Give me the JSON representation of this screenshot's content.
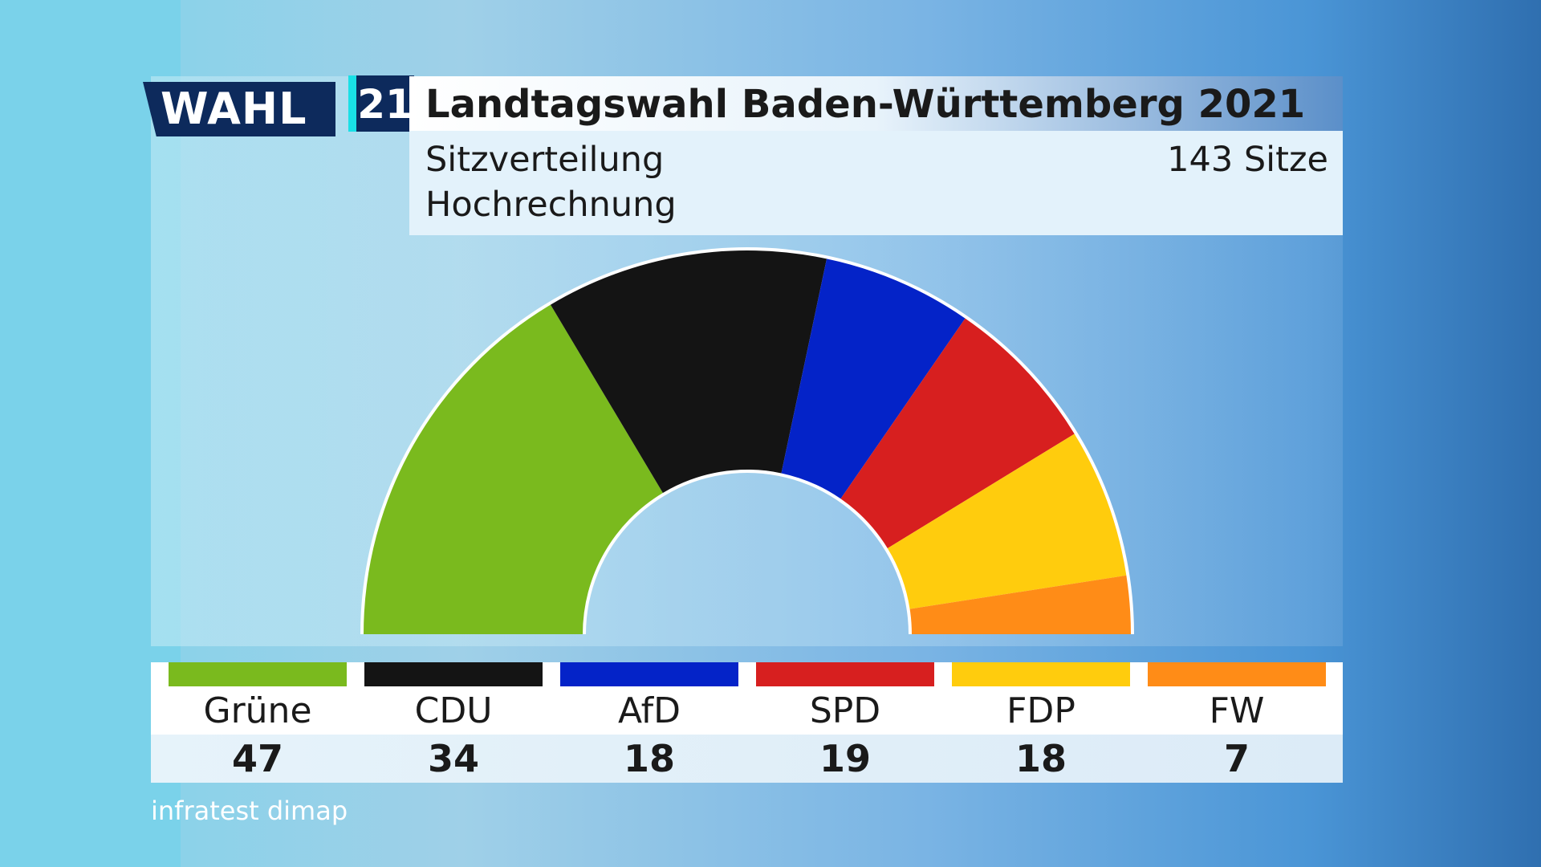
{
  "header": {
    "logo_wahl": "WAHL",
    "logo_year": "21",
    "title": "Landtagswahl Baden-Württemberg 2021",
    "subtitle_1": "Sitzverteilung",
    "subtitle_2": "Hochrechnung",
    "total_seats_label": "143 Sitze"
  },
  "chart_data": {
    "type": "parliament-semicircle",
    "total_seats": 143,
    "parties": [
      {
        "name": "Grüne",
        "seats": 47,
        "color": "#7aba1e"
      },
      {
        "name": "CDU",
        "seats": 34,
        "color": "#141414"
      },
      {
        "name": "AfD",
        "seats": 18,
        "color": "#0423c8"
      },
      {
        "name": "SPD",
        "seats": 19,
        "color": "#d71f1f"
      },
      {
        "name": "FDP",
        "seats": 18,
        "color": "#ffcc0d"
      },
      {
        "name": "FW",
        "seats": 7,
        "color": "#ff8c17"
      }
    ]
  },
  "source": "infratest dimap"
}
